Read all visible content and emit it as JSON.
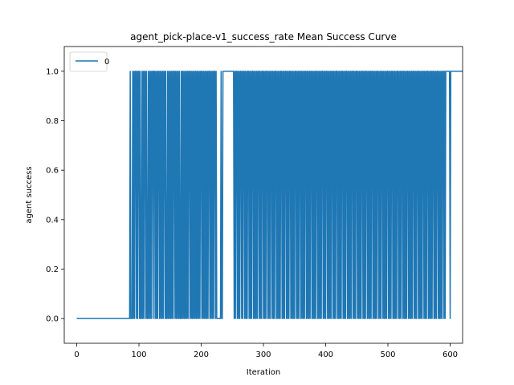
{
  "chart_data": {
    "type": "line",
    "title": "agent_pick-place-v1_success_rate Mean Success Curve",
    "xlabel": "Iteration",
    "ylabel": "agent success",
    "xlim": [
      -20,
      620
    ],
    "ylim": [
      -0.1,
      1.1
    ],
    "xticks": [
      0,
      100,
      200,
      300,
      400,
      500,
      600
    ],
    "yticks": [
      0.0,
      0.2,
      0.4,
      0.6,
      0.8,
      1.0
    ],
    "ytick_labels": [
      "0.0",
      "0.2",
      "0.4",
      "0.6",
      "0.8",
      "1.0"
    ],
    "grid": false,
    "legend_position": "top-left",
    "series": [
      {
        "name": "0",
        "color": "#1f77b4",
        "x_start": 0,
        "x_step": 1,
        "values": [
          0,
          0,
          0,
          0,
          0,
          0,
          0,
          0,
          0,
          0,
          0,
          0,
          0,
          0,
          0,
          0,
          0,
          0,
          0,
          0,
          0,
          0,
          0,
          0,
          0,
          0,
          0,
          0,
          0,
          0,
          0,
          0,
          0,
          0,
          0,
          0,
          0,
          0,
          0,
          0,
          0,
          0,
          0,
          0,
          0,
          0,
          0,
          0,
          0,
          0,
          0,
          0,
          0,
          0,
          0,
          0,
          0,
          0,
          0,
          0,
          0,
          0,
          0,
          0,
          0,
          0,
          0,
          0,
          0,
          0,
          0,
          0,
          0,
          0,
          0,
          0,
          0,
          0,
          0,
          0,
          0,
          0,
          0,
          0,
          0,
          0,
          1,
          0,
          0,
          0,
          1,
          0,
          1,
          0,
          1,
          1,
          0,
          1,
          0,
          1,
          1,
          0,
          1,
          0,
          0,
          1,
          0,
          1,
          0,
          1,
          1,
          0,
          1,
          0,
          0,
          1,
          0,
          1,
          0,
          1,
          0,
          1,
          1,
          0,
          1,
          1,
          0,
          1,
          0,
          1,
          0,
          1,
          1,
          0,
          1,
          0,
          1,
          0,
          1,
          0,
          1,
          1,
          0,
          1,
          0,
          0,
          1,
          0,
          1,
          0,
          1,
          0,
          1,
          0,
          1,
          0,
          1,
          1,
          0,
          1,
          0,
          1,
          0,
          1,
          0,
          1,
          0,
          0,
          1,
          0,
          1,
          0,
          1,
          0,
          1,
          0,
          1,
          0,
          1,
          0,
          1,
          1,
          0,
          1,
          0,
          1,
          0,
          1,
          0,
          1,
          0,
          1,
          0,
          1,
          0,
          1,
          0,
          1,
          0,
          1,
          1,
          0,
          1,
          0,
          1,
          0,
          1,
          0,
          1,
          0,
          1,
          0,
          1,
          1,
          0,
          1,
          0,
          1,
          0,
          1,
          0,
          1,
          1,
          0,
          1,
          0,
          0,
          0,
          0,
          0,
          0,
          0,
          1,
          0,
          0,
          1,
          1,
          1,
          1,
          1,
          1,
          1,
          1,
          1,
          1,
          1,
          1,
          1,
          1,
          1,
          1,
          1,
          1,
          0,
          1,
          0,
          1,
          1,
          0,
          1,
          0,
          1,
          0,
          1,
          1,
          0,
          1,
          0,
          1,
          1,
          0,
          1,
          0,
          1,
          0,
          1,
          1,
          0,
          1,
          0,
          1,
          0,
          1,
          1,
          0,
          1,
          0,
          1,
          0,
          1,
          0,
          1,
          1,
          0,
          1,
          0,
          1,
          0,
          1,
          1,
          0,
          1,
          0,
          1,
          0,
          1,
          1,
          0,
          1,
          0,
          1,
          0,
          1,
          1,
          0,
          1,
          0,
          1,
          0,
          1,
          1,
          0,
          1,
          0,
          1,
          0,
          1,
          0,
          1,
          1,
          0,
          1,
          0,
          1,
          0,
          1,
          1,
          0,
          1,
          0,
          1,
          0,
          1,
          1,
          0,
          1,
          0,
          1,
          0,
          1,
          0,
          1,
          1,
          0,
          1,
          0,
          1,
          0,
          1,
          1,
          0,
          1,
          0,
          1,
          0,
          1,
          0,
          1,
          1,
          0,
          1,
          0,
          1,
          0,
          1,
          0,
          1,
          1,
          0,
          1,
          0,
          1,
          0,
          1,
          0,
          1,
          1,
          0,
          1,
          0,
          1,
          0,
          1,
          0,
          1,
          1,
          0,
          1,
          0,
          1,
          0,
          1,
          1,
          0,
          1,
          0,
          1,
          0,
          1,
          0,
          1,
          1,
          0,
          1,
          0,
          1,
          0,
          1,
          1,
          0,
          1,
          0,
          1,
          0,
          1,
          0,
          1,
          1,
          0,
          1,
          0,
          1,
          0,
          1,
          1,
          0,
          1,
          0,
          1,
          0,
          1,
          0,
          1,
          1,
          0,
          1,
          0,
          1,
          0,
          1,
          1,
          0,
          1,
          0,
          1,
          0,
          1,
          0,
          1,
          1,
          0,
          1,
          0,
          1,
          0,
          1,
          1,
          0,
          1,
          0,
          1,
          0,
          1,
          0,
          1,
          1,
          0,
          1,
          0,
          1,
          0,
          1,
          0,
          1,
          1,
          0,
          1,
          0,
          1,
          0,
          1,
          1,
          0,
          1,
          0,
          1,
          0,
          1,
          0,
          1,
          1,
          0,
          1,
          0,
          1,
          0,
          1,
          1,
          0,
          1,
          0,
          1,
          0,
          1,
          0,
          1,
          1,
          0,
          1,
          0,
          1,
          0,
          1,
          1,
          0,
          1,
          0,
          1,
          0,
          1,
          0,
          1,
          1,
          0,
          1,
          0,
          1,
          0,
          1,
          0,
          1,
          1,
          0,
          1,
          0,
          1,
          0,
          1,
          1,
          0,
          1,
          0,
          1,
          0,
          1,
          0,
          1,
          1,
          0,
          1,
          0,
          1,
          0,
          1,
          1,
          0,
          1,
          0,
          1,
          0,
          1,
          0,
          1,
          1,
          0,
          1,
          0,
          1,
          0,
          1,
          1,
          0,
          1,
          0,
          1,
          0,
          1,
          0,
          1,
          1,
          0,
          1,
          0,
          1,
          1,
          1,
          1,
          1,
          1,
          1,
          0,
          1,
          1,
          1,
          1,
          1,
          1,
          1,
          1,
          1,
          1,
          1,
          1,
          1,
          1,
          1,
          1,
          1,
          1,
          1,
          1,
          1,
          1,
          0,
          0,
          1,
          1,
          1
        ]
      }
    ]
  }
}
